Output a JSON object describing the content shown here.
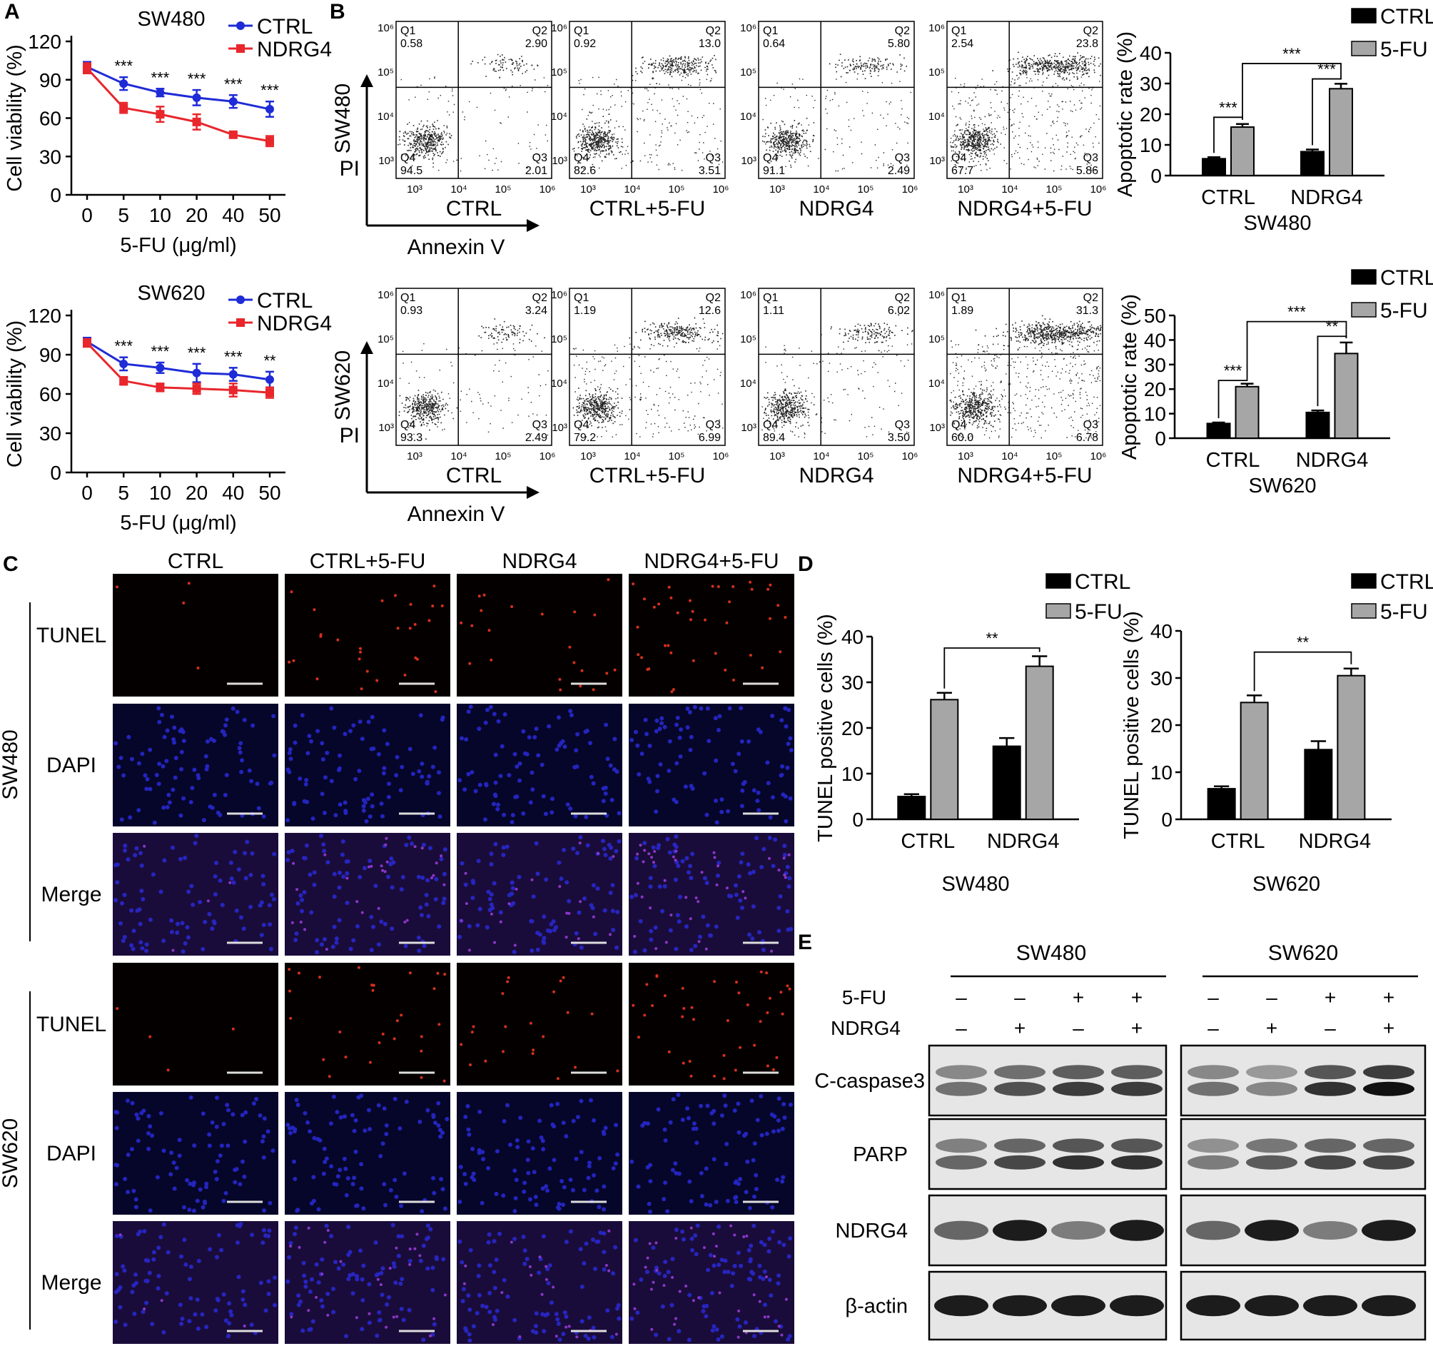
{
  "panel_letters": {
    "A": "A",
    "B": "B",
    "C": "C",
    "D": "D",
    "E": "E"
  },
  "colors": {
    "ctrl_line": "#1f2bd6",
    "ndrg4_line": "#e8262c",
    "bar_ctrl": "#000000",
    "bar_5fu": "#a6a6a6",
    "tunel": "#d4301c",
    "dapi": "#2a2ad8",
    "merge": "#8a36c8"
  },
  "chart_data": [
    {
      "id": "A-SW480",
      "type": "line",
      "title": "SW480",
      "x": [
        "0",
        "5",
        "10",
        "20",
        "40",
        "50"
      ],
      "ylabel": "Cell viability (%)",
      "xlabel": "5-FU (μg/ml)",
      "ylim": [
        0,
        120
      ],
      "yticks": [
        0,
        30,
        60,
        90,
        120
      ],
      "series": [
        {
          "name": "CTRL",
          "values": [
            100,
            87,
            80,
            76,
            73,
            67
          ],
          "err": [
            4,
            5,
            3,
            6,
            5,
            6
          ]
        },
        {
          "name": "NDRG4",
          "values": [
            99,
            68,
            63,
            57,
            47,
            42
          ],
          "err": [
            4,
            4,
            6,
            6,
            2,
            4
          ]
        }
      ],
      "annotations": [
        "***",
        "***",
        "***",
        "***",
        "***"
      ]
    },
    {
      "id": "A-SW620",
      "type": "line",
      "title": "SW620",
      "x": [
        "0",
        "5",
        "10",
        "20",
        "40",
        "50"
      ],
      "ylabel": "Cell viability (%)",
      "xlabel": "5-FU (μg/ml)",
      "ylim": [
        0,
        120
      ],
      "yticks": [
        0,
        30,
        60,
        90,
        120
      ],
      "series": [
        {
          "name": "CTRL",
          "values": [
            100,
            83,
            80,
            76,
            75,
            71
          ],
          "err": [
            3,
            5,
            4,
            7,
            5,
            6
          ]
        },
        {
          "name": "NDRG4",
          "values": [
            99,
            70,
            65,
            64,
            63,
            61
          ],
          "err": [
            3,
            3,
            3,
            4,
            5,
            4
          ]
        }
      ],
      "annotations": [
        "***",
        "***",
        "***",
        "***",
        "**"
      ]
    },
    {
      "id": "B-SW480",
      "type": "bar",
      "categories": [
        "CTRL",
        "NDRG4"
      ],
      "xlabel": "SW480",
      "ylabel": "Apoptotic rate (%)",
      "ylim": [
        0,
        40
      ],
      "yticks": [
        0,
        10,
        20,
        30,
        40
      ],
      "series": [
        {
          "name": "CTRL",
          "values": [
            5.5,
            7.8
          ],
          "err": [
            0.5,
            0.7
          ]
        },
        {
          "name": "5-FU",
          "values": [
            15.8,
            28.3
          ],
          "err": [
            1.0,
            1.6
          ]
        }
      ],
      "annotations": [
        "***",
        "***",
        "***"
      ]
    },
    {
      "id": "B-SW620",
      "type": "bar",
      "categories": [
        "CTRL",
        "NDRG4"
      ],
      "xlabel": "SW620",
      "ylabel": "Apoptotic rate (%)",
      "ylim": [
        0,
        50
      ],
      "yticks": [
        0,
        10,
        20,
        30,
        40,
        50
      ],
      "series": [
        {
          "name": "CTRL",
          "values": [
            6,
            10.5
          ],
          "err": [
            0.4,
            0.8
          ]
        },
        {
          "name": "5-FU",
          "values": [
            21,
            34.5
          ],
          "err": [
            1.2,
            4.5
          ]
        }
      ],
      "annotations": [
        "***",
        "**",
        "***"
      ]
    },
    {
      "id": "D-SW480",
      "type": "bar",
      "categories": [
        "CTRL",
        "NDRG4"
      ],
      "xlabel": "SW480",
      "ylabel": "TUNEL positive cells (%)",
      "ylim": [
        0,
        40
      ],
      "yticks": [
        0,
        10,
        20,
        30,
        40
      ],
      "series": [
        {
          "name": "CTRL",
          "values": [
            5,
            16
          ],
          "err": [
            0.5,
            1.8
          ]
        },
        {
          "name": "5-FU",
          "values": [
            26.2,
            33.5
          ],
          "err": [
            1.5,
            2.2
          ]
        }
      ],
      "annotations": [
        "**"
      ]
    },
    {
      "id": "D-SW620",
      "type": "bar",
      "categories": [
        "CTRL",
        "NDRG4"
      ],
      "xlabel": "SW620",
      "ylabel": "TUNEL positive cells (%)",
      "ylim": [
        0,
        40
      ],
      "yticks": [
        0,
        10,
        20,
        30,
        40
      ],
      "series": [
        {
          "name": "CTRL",
          "values": [
            6.5,
            14.8
          ],
          "err": [
            0.5,
            1.8
          ]
        },
        {
          "name": "5-FU",
          "values": [
            24.8,
            30.5
          ],
          "err": [
            1.5,
            1.5
          ]
        }
      ],
      "annotations": [
        "**"
      ]
    }
  ],
  "flow": {
    "axis_y": "PI",
    "axis_x": "Annexin V",
    "tick_y": [
      "10⁶",
      "10⁵",
      "10⁴",
      "10³"
    ],
    "tick_x": [
      "10³",
      "10⁴",
      "10⁵",
      "10⁶"
    ],
    "quadrant_names": [
      "Q1",
      "Q2",
      "Q3",
      "Q4"
    ],
    "rows": [
      {
        "cell": "SW480",
        "plots": [
          {
            "label": "CTRL",
            "q": [
              "0.58",
              "2.90",
              "2.01",
              "94.5"
            ]
          },
          {
            "label": "CTRL+5-FU",
            "q": [
              "0.92",
              "13.0",
              "3.51",
              "82.6"
            ]
          },
          {
            "label": "NDRG4",
            "q": [
              "0.64",
              "5.80",
              "2.49",
              "91.1"
            ]
          },
          {
            "label": "NDRG4+5-FU",
            "q": [
              "2.54",
              "23.8",
              "5.86",
              "67.7"
            ]
          }
        ]
      },
      {
        "cell": "SW620",
        "plots": [
          {
            "label": "CTRL",
            "q": [
              "0.93",
              "3.24",
              "2.49",
              "93.3"
            ]
          },
          {
            "label": "CTRL+5-FU",
            "q": [
              "1.19",
              "12.6",
              "6.99",
              "79.2"
            ]
          },
          {
            "label": "NDRG4",
            "q": [
              "1.11",
              "6.02",
              "3.50",
              "89.4"
            ]
          },
          {
            "label": "NDRG4+5-FU",
            "q": [
              "1.89",
              "31.3",
              "6.78",
              "60.0"
            ]
          }
        ]
      }
    ]
  },
  "micro": {
    "columns": [
      "CTRL",
      "CTRL+5-FU",
      "NDRG4",
      "NDRG4+5-FU"
    ],
    "groups": [
      {
        "cell": "SW480",
        "rows": [
          "TUNEL",
          "DAPI",
          "Merge"
        ]
      },
      {
        "cell": "SW620",
        "rows": [
          "TUNEL",
          "DAPI",
          "Merge"
        ]
      }
    ]
  },
  "blot": {
    "groups": [
      "SW480",
      "SW620"
    ],
    "treat_labels": [
      "5-FU",
      "NDRG4"
    ],
    "signs_5fu": [
      "–",
      "–",
      "+",
      "+"
    ],
    "signs_ndrg4": [
      "–",
      "+",
      "–",
      "+"
    ],
    "bands": [
      "C-caspase3",
      "PARP",
      "NDRG4",
      "β-actin"
    ]
  }
}
